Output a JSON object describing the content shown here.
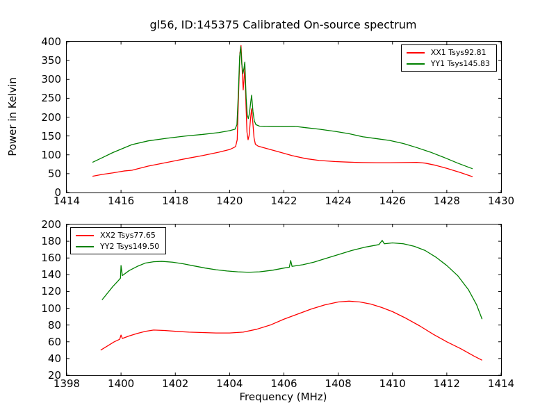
{
  "figure": {
    "title": "gl56, ID:145375 Calibrated On-source spectrum",
    "xlabel": "Frequency (MHz)",
    "ylabel": "Power in Kelvin",
    "background_color": "#ffffff",
    "axis_color": "#000000"
  },
  "chart_data": [
    {
      "type": "line",
      "title": "gl56, ID:145375 Calibrated On-source spectrum",
      "ylabel": "Power in Kelvin",
      "xlim": [
        1414,
        1430
      ],
      "ylim": [
        0,
        400
      ],
      "xticks": [
        1414,
        1416,
        1418,
        1420,
        1422,
        1424,
        1426,
        1428,
        1430
      ],
      "yticks": [
        0,
        50,
        100,
        150,
        200,
        250,
        300,
        350,
        400
      ],
      "grid": false,
      "legend_position": "upper right",
      "series": [
        {
          "name": "XX1 Tsys92.81",
          "color": "#ff0000",
          "points": [
            [
              1414.95,
              43
            ],
            [
              1415.3,
              48
            ],
            [
              1415.7,
              52
            ],
            [
              1416.1,
              57
            ],
            [
              1416.4,
              59
            ],
            [
              1417.0,
              70
            ],
            [
              1417.7,
              80
            ],
            [
              1418.4,
              90
            ],
            [
              1419.0,
              98
            ],
            [
              1419.6,
              107
            ],
            [
              1420.0,
              114
            ],
            [
              1420.15,
              119
            ],
            [
              1420.22,
              122
            ],
            [
              1420.28,
              140
            ],
            [
              1420.33,
              260
            ],
            [
              1420.38,
              370
            ],
            [
              1420.42,
              390
            ],
            [
              1420.46,
              330
            ],
            [
              1420.5,
              272
            ],
            [
              1420.53,
              300
            ],
            [
              1420.56,
              330
            ],
            [
              1420.6,
              240
            ],
            [
              1420.64,
              160
            ],
            [
              1420.68,
              140
            ],
            [
              1420.72,
              152
            ],
            [
              1420.77,
              195
            ],
            [
              1420.81,
              222
            ],
            [
              1420.85,
              190
            ],
            [
              1420.9,
              145
            ],
            [
              1420.95,
              128
            ],
            [
              1421.05,
              123
            ],
            [
              1421.3,
              118
            ],
            [
              1421.8,
              108
            ],
            [
              1422.3,
              98
            ],
            [
              1422.8,
              90
            ],
            [
              1423.3,
              85
            ],
            [
              1423.9,
              82
            ],
            [
              1424.4,
              80.5
            ],
            [
              1424.9,
              79.5
            ],
            [
              1425.4,
              79
            ],
            [
              1425.9,
              79
            ],
            [
              1426.4,
              79.5
            ],
            [
              1426.9,
              80
            ],
            [
              1427.2,
              78
            ],
            [
              1427.6,
              72
            ],
            [
              1428.0,
              64
            ],
            [
              1428.5,
              53
            ],
            [
              1428.95,
              42
            ]
          ]
        },
        {
          "name": "YY1 Tsys145.83",
          "color": "#008000",
          "points": [
            [
              1414.95,
              80
            ],
            [
              1415.3,
              92
            ],
            [
              1415.7,
              106
            ],
            [
              1416.1,
              118
            ],
            [
              1416.4,
              127
            ],
            [
              1417.0,
              137
            ],
            [
              1417.7,
              144
            ],
            [
              1418.4,
              150
            ],
            [
              1419.0,
              154
            ],
            [
              1419.6,
              159
            ],
            [
              1420.0,
              164
            ],
            [
              1420.2,
              168
            ],
            [
              1420.27,
              180
            ],
            [
              1420.32,
              260
            ],
            [
              1420.37,
              360
            ],
            [
              1420.41,
              387
            ],
            [
              1420.45,
              340
            ],
            [
              1420.49,
              315
            ],
            [
              1420.53,
              330
            ],
            [
              1420.56,
              346
            ],
            [
              1420.61,
              250
            ],
            [
              1420.65,
              205
            ],
            [
              1420.69,
              196
            ],
            [
              1420.73,
              210
            ],
            [
              1420.77,
              235
            ],
            [
              1420.81,
              258
            ],
            [
              1420.86,
              215
            ],
            [
              1420.91,
              190
            ],
            [
              1420.97,
              180
            ],
            [
              1421.1,
              176
            ],
            [
              1421.5,
              175.5
            ],
            [
              1422.0,
              175
            ],
            [
              1422.4,
              175.5
            ],
            [
              1422.8,
              172
            ],
            [
              1423.3,
              168
            ],
            [
              1423.9,
              162
            ],
            [
              1424.4,
              156
            ],
            [
              1424.9,
              148
            ],
            [
              1425.4,
              143
            ],
            [
              1425.9,
              138
            ],
            [
              1426.4,
              130
            ],
            [
              1426.9,
              119
            ],
            [
              1427.4,
              107
            ],
            [
              1427.9,
              93
            ],
            [
              1428.4,
              78
            ],
            [
              1428.95,
              63
            ]
          ]
        }
      ]
    },
    {
      "type": "line",
      "xlabel": "Frequency (MHz)",
      "xlim": [
        1398,
        1414
      ],
      "ylim": [
        20,
        200
      ],
      "xticks": [
        1398,
        1400,
        1402,
        1404,
        1406,
        1408,
        1410,
        1412,
        1414
      ],
      "yticks": [
        20,
        40,
        60,
        80,
        100,
        120,
        140,
        160,
        180,
        200
      ],
      "grid": false,
      "legend_position": "upper left",
      "series": [
        {
          "name": "XX2 Tsys77.65",
          "color": "#ff0000",
          "points": [
            [
              1399.25,
              50
            ],
            [
              1399.5,
              55
            ],
            [
              1399.75,
              60
            ],
            [
              1399.95,
              63
            ],
            [
              1400.0,
              68
            ],
            [
              1400.05,
              64
            ],
            [
              1400.3,
              67
            ],
            [
              1400.6,
              70
            ],
            [
              1400.9,
              72.5
            ],
            [
              1401.2,
              74
            ],
            [
              1401.6,
              73.5
            ],
            [
              1402.0,
              72.5
            ],
            [
              1402.5,
              71.5
            ],
            [
              1403.0,
              71
            ],
            [
              1403.5,
              70.5
            ],
            [
              1404.0,
              70.5
            ],
            [
              1404.5,
              71.5
            ],
            [
              1405.0,
              75
            ],
            [
              1405.5,
              80
            ],
            [
              1406.0,
              87
            ],
            [
              1406.5,
              93
            ],
            [
              1407.0,
              99
            ],
            [
              1407.5,
              104
            ],
            [
              1408.0,
              107.5
            ],
            [
              1408.4,
              108.5
            ],
            [
              1408.8,
              107.5
            ],
            [
              1409.2,
              105
            ],
            [
              1409.6,
              101
            ],
            [
              1410.0,
              96
            ],
            [
              1410.5,
              88
            ],
            [
              1411.0,
              79
            ],
            [
              1411.5,
              69
            ],
            [
              1412.0,
              60
            ],
            [
              1412.5,
              52
            ],
            [
              1413.0,
              43
            ],
            [
              1413.3,
              38
            ]
          ]
        },
        {
          "name": "YY2 Tsys149.50",
          "color": "#008000",
          "points": [
            [
              1399.3,
              110
            ],
            [
              1399.5,
              118
            ],
            [
              1399.7,
              126
            ],
            [
              1399.9,
              133
            ],
            [
              1399.98,
              136
            ],
            [
              1400.0,
              151
            ],
            [
              1400.05,
              139
            ],
            [
              1400.3,
              145
            ],
            [
              1400.6,
              150
            ],
            [
              1400.9,
              154
            ],
            [
              1401.2,
              155.5
            ],
            [
              1401.5,
              156
            ],
            [
              1401.9,
              155
            ],
            [
              1402.3,
              153
            ],
            [
              1402.7,
              150.5
            ],
            [
              1403.1,
              148
            ],
            [
              1403.5,
              146
            ],
            [
              1403.9,
              144.5
            ],
            [
              1404.3,
              143.5
            ],
            [
              1404.7,
              143
            ],
            [
              1405.1,
              143.5
            ],
            [
              1405.6,
              145.5
            ],
            [
              1406.0,
              148
            ],
            [
              1406.2,
              149
            ],
            [
              1406.25,
              157
            ],
            [
              1406.3,
              150
            ],
            [
              1406.7,
              152
            ],
            [
              1407.1,
              155
            ],
            [
              1407.5,
              159
            ],
            [
              1408.0,
              164
            ],
            [
              1408.5,
              169
            ],
            [
              1409.0,
              173
            ],
            [
              1409.5,
              176
            ],
            [
              1409.62,
              181
            ],
            [
              1409.7,
              177
            ],
            [
              1410.0,
              178
            ],
            [
              1410.4,
              177
            ],
            [
              1410.8,
              174
            ],
            [
              1411.2,
              169
            ],
            [
              1411.6,
              161
            ],
            [
              1412.0,
              151
            ],
            [
              1412.4,
              139
            ],
            [
              1412.8,
              122
            ],
            [
              1413.1,
              104
            ],
            [
              1413.3,
              87
            ]
          ]
        }
      ]
    }
  ]
}
